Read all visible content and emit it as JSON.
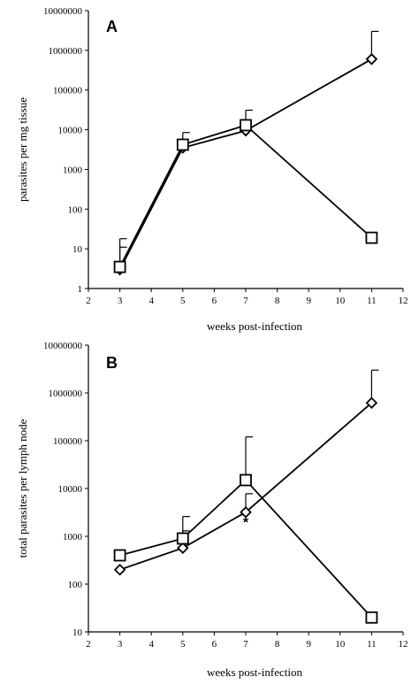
{
  "chart_data": [
    {
      "type": "line",
      "panel_label": "A",
      "title": "",
      "xlabel": "weeks post-infection",
      "ylabel": "parasites per mg tissue",
      "xlim": [
        2,
        12
      ],
      "ylim": [
        1,
        10000000
      ],
      "yscale": "log",
      "x_ticks": [
        "2",
        "3",
        "4",
        "5",
        "6",
        "7",
        "8",
        "9",
        "10",
        "11",
        "12"
      ],
      "y_ticks": [
        "1",
        "10",
        "100",
        "1000",
        "10000",
        "100000",
        "1000000",
        "10000000"
      ],
      "grid": false,
      "series": [
        {
          "marker": "diamond",
          "x": [
            3,
            5,
            7,
            11
          ],
          "y": [
            3,
            3500,
            9500,
            600000
          ],
          "error_upper": [
            11,
            null,
            null,
            3000000
          ]
        },
        {
          "marker": "square",
          "x": [
            3,
            5,
            7,
            11
          ],
          "y": [
            3.5,
            4200,
            13000,
            19
          ],
          "error_upper": [
            18,
            8500,
            31000,
            null
          ]
        }
      ],
      "annotations": []
    },
    {
      "type": "line",
      "panel_label": "B",
      "title": "",
      "xlabel": "weeks post-infection",
      "ylabel": "total parasites per lymph node",
      "xlim": [
        2,
        12
      ],
      "ylim": [
        10,
        10000000
      ],
      "yscale": "log",
      "x_ticks": [
        "2",
        "3",
        "4",
        "5",
        "6",
        "7",
        "8",
        "9",
        "10",
        "11",
        "12"
      ],
      "y_ticks": [
        "10",
        "100",
        "1000",
        "10000",
        "100000",
        "1000000",
        "10000000"
      ],
      "grid": false,
      "series": [
        {
          "marker": "diamond",
          "x": [
            3,
            5,
            7,
            11
          ],
          "y": [
            200,
            570,
            3200,
            620000
          ],
          "error_upper": [
            null,
            1300,
            7800,
            3000000
          ]
        },
        {
          "marker": "square",
          "x": [
            3,
            5,
            7,
            11
          ],
          "y": [
            400,
            900,
            15000,
            20
          ],
          "error_upper": [
            null,
            2600,
            120000,
            null
          ]
        }
      ],
      "annotations": [
        {
          "text": "*",
          "x": 7,
          "y": 2000
        }
      ]
    }
  ]
}
